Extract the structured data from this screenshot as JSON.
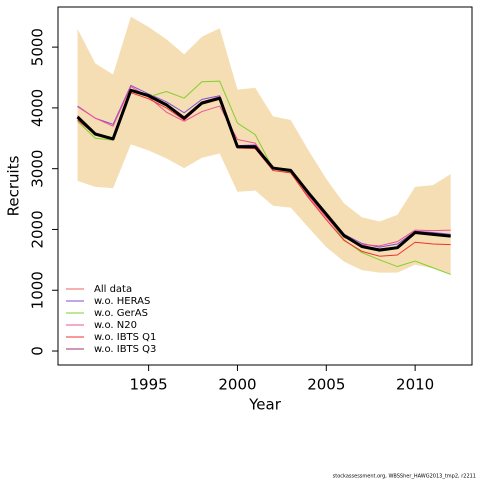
{
  "chart_data": {
    "type": "line",
    "xlabel": "Year",
    "ylabel": "Recruits",
    "caption": "stockassessment.org, WBSSher_HAWG2013_tmp2, r2211",
    "x": [
      1991,
      1992,
      1993,
      1994,
      1995,
      1996,
      1997,
      1998,
      1999,
      2000,
      2001,
      2002,
      2003,
      2004,
      2005,
      2006,
      2007,
      2008,
      2009,
      2010,
      2011,
      2012
    ],
    "xlim": [
      1989.9,
      2013.2
    ],
    "xticks": [
      1995,
      2000,
      2005,
      2010
    ],
    "ylim": [
      -230,
      5660
    ],
    "yticks": [
      0,
      1000,
      2000,
      3000,
      4000,
      5000
    ],
    "legend": "bottom-left",
    "band": {
      "color": "#f5deb3",
      "upper": [
        5300,
        4730,
        4550,
        5500,
        5330,
        5130,
        4880,
        5170,
        5310,
        4300,
        4330,
        3860,
        3800,
        3300,
        2830,
        2430,
        2200,
        2130,
        2240,
        2700,
        2730,
        2910
      ],
      "lower": [
        2800,
        2700,
        2680,
        3400,
        3300,
        3170,
        3010,
        3180,
        3250,
        2620,
        2640,
        2390,
        2360,
        2030,
        1710,
        1470,
        1330,
        1290,
        1290,
        1420,
        1360,
        1260
      ]
    },
    "series": [
      {
        "color": "#000000",
        "width": 3,
        "values": [
          3850,
          3570,
          3490,
          4290,
          4200,
          4050,
          3830,
          4080,
          4160,
          3360,
          3360,
          3010,
          2970,
          2600,
          2250,
          1900,
          1720,
          1660,
          1700,
          1950,
          1920,
          1890
        ]
      },
      {
        "name": "All data",
        "color": "#f0605a",
        "values": [
          3840,
          3560,
          3480,
          4280,
          4190,
          4040,
          3820,
          4070,
          4150,
          3350,
          3350,
          3000,
          2960,
          2590,
          2240,
          1890,
          1710,
          1650,
          1690,
          1940,
          1910,
          1880
        ]
      },
      {
        "name": "w.o. HERAS",
        "color": "#7b4fd6",
        "values": [
          4030,
          3830,
          3730,
          4370,
          4230,
          4100,
          3920,
          4140,
          4200,
          3380,
          3390,
          3020,
          2990,
          2600,
          2250,
          1920,
          1770,
          1710,
          1760,
          1970,
          1950,
          1920
        ]
      },
      {
        "name": "w.o. GerAS",
        "color": "#7fd12a",
        "values": [
          3780,
          3500,
          3470,
          4290,
          4180,
          4270,
          4160,
          4430,
          4440,
          3750,
          3560,
          3000,
          2940,
          2600,
          2220,
          1830,
          1620,
          1500,
          1390,
          1480,
          1370,
          1260
        ]
      },
      {
        "name": "w.o. N20",
        "color": "#f0509a",
        "values": [
          4020,
          3830,
          3700,
          4350,
          4180,
          3930,
          3780,
          3940,
          4030,
          3480,
          3420,
          3000,
          2960,
          2550,
          2200,
          1870,
          1750,
          1730,
          1800,
          1990,
          1980,
          1990
        ]
      },
      {
        "name": "w.o. IBTS Q1",
        "color": "#f03030",
        "values": [
          3800,
          3560,
          3480,
          4250,
          4150,
          4000,
          3800,
          4060,
          4140,
          3340,
          3330,
          2970,
          2930,
          2520,
          2160,
          1820,
          1640,
          1560,
          1580,
          1790,
          1760,
          1750
        ]
      },
      {
        "name": "w.o. IBTS Q3",
        "color": "#a0306a",
        "values": [
          3870,
          3590,
          3500,
          4300,
          4210,
          4070,
          3850,
          4100,
          4180,
          3370,
          3370,
          3020,
          2980,
          2610,
          2260,
          1910,
          1730,
          1680,
          1710,
          1960,
          1940,
          1900
        ]
      }
    ]
  }
}
